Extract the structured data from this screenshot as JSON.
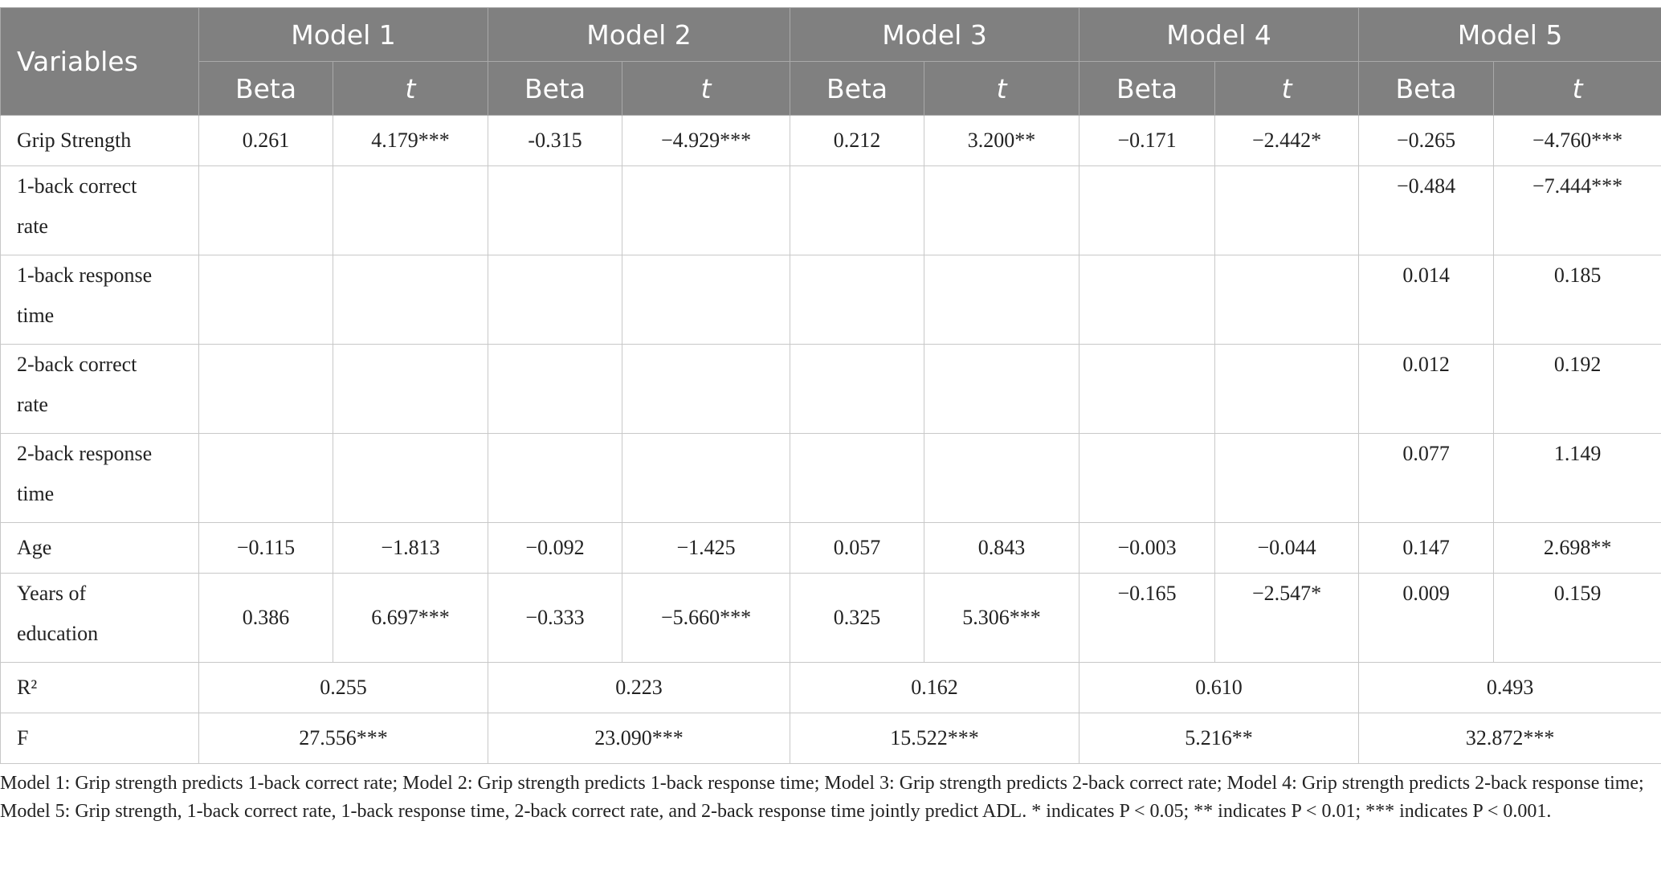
{
  "table": {
    "corner": "Variables",
    "models": [
      "Model 1",
      "Model 2",
      "Model 3",
      "Model 4",
      "Model 5"
    ],
    "subheaders": [
      "Beta",
      "t",
      "Beta",
      "t",
      "Beta",
      "t",
      "Beta",
      "t",
      "Beta",
      "t"
    ],
    "rows": [
      {
        "label": [
          "Grip Strength"
        ],
        "cells": [
          "0.261",
          "4.179***",
          "-0.315",
          "−4.929***",
          "0.212",
          "3.200**",
          "−0.171",
          "−2.442*",
          "−0.265",
          "−4.760***"
        ]
      },
      {
        "label": [
          "1-back correct",
          "rate"
        ],
        "cells": [
          null,
          null,
          null,
          null,
          null,
          null,
          null,
          null,
          "−0.484",
          "−7.444***"
        ]
      },
      {
        "label": [
          "1-back response",
          "time"
        ],
        "cells": [
          null,
          null,
          null,
          null,
          null,
          null,
          null,
          null,
          "0.014",
          "0.185"
        ]
      },
      {
        "label": [
          "2-back correct",
          "rate"
        ],
        "cells": [
          null,
          null,
          null,
          null,
          null,
          null,
          null,
          null,
          "0.012",
          "0.192"
        ]
      },
      {
        "label": [
          "2-back response",
          "time"
        ],
        "cells": [
          null,
          null,
          null,
          null,
          null,
          null,
          null,
          null,
          "0.077",
          "1.149"
        ]
      },
      {
        "label": [
          "Age"
        ],
        "cells": [
          "−0.115",
          "−1.813",
          "−0.092",
          "−1.425",
          "0.057",
          "0.843",
          "−0.003",
          "−0.044",
          "0.147",
          "2.698**"
        ]
      },
      {
        "label": [
          "Years of",
          "education"
        ],
        "cells": [
          "0.386",
          "6.697***",
          "−0.333",
          "−5.660***",
          "0.325",
          "5.306***",
          "−0.165",
          "−2.547*",
          "0.009",
          "0.159"
        ]
      }
    ],
    "summary_rows": [
      {
        "label": "R²",
        "cells": [
          "0.255",
          "0.223",
          "0.162",
          "0.610",
          "0.493"
        ]
      },
      {
        "label": "F",
        "cells": [
          "27.556***",
          "23.090***",
          "15.522***",
          "5.216**",
          "32.872***"
        ]
      }
    ]
  },
  "footnote": "Model 1: Grip strength predicts 1-back correct rate; Model 2: Grip strength predicts 1-back response time; Model 3: Grip strength predicts 2-back correct rate; Model 4: Grip strength predicts 2-back response time; Model 5: Grip strength, 1-back correct rate, 1-back response time, 2-back correct rate, and 2-back response time jointly predict ADL. * indicates P < 0.05; ** indicates P < 0.01; *** indicates P < 0.001."
}
